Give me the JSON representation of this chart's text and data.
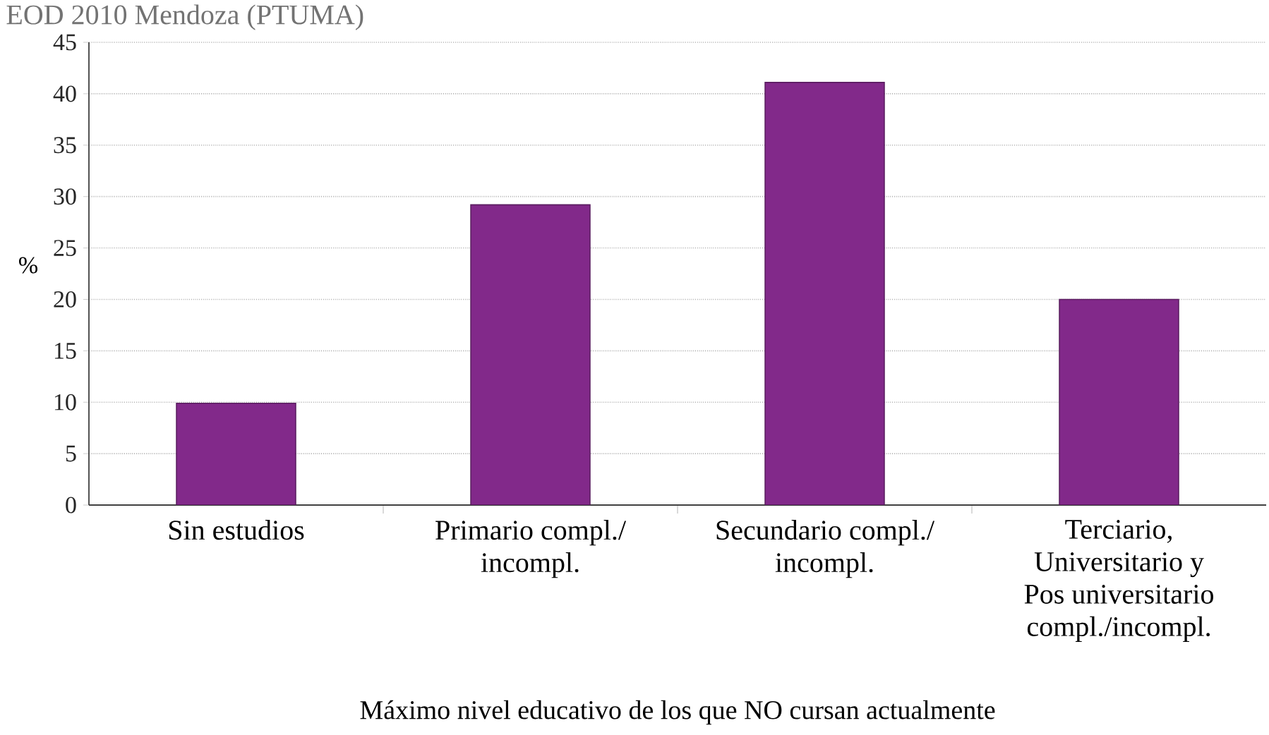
{
  "chart_data": {
    "type": "bar",
    "annotations": [
      "EOD 2010 Mendoza (PTUMA)"
    ],
    "categories": [
      "Sin estudios",
      "Primario compl./ incompl.",
      "Secundario compl./ incompl.",
      "Terciario, Universitario y Pos universitario compl./incompl."
    ],
    "values": [
      9.9,
      29.2,
      41.1,
      20
    ],
    "color": "#82298a",
    "ylim": [
      0,
      45
    ],
    "yticks": [
      0,
      5,
      10,
      15,
      20,
      25,
      30,
      35,
      40,
      45
    ],
    "ylabel": "%",
    "xlabel": "Máximo nivel educativo de los que NO cursan actualmente",
    "grid": "y"
  }
}
